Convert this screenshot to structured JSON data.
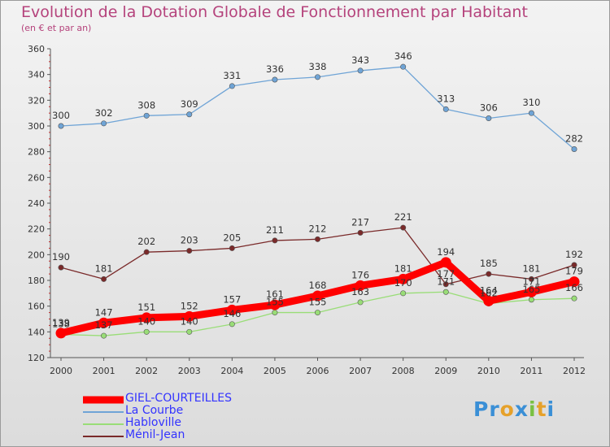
{
  "title": "Evolution de la Dotation Globale de Fonctionnement par Habitant",
  "subtitle": "(en € et par an)",
  "logo": {
    "text": "Proxiti",
    "colors": [
      "#3a8fd6",
      "#3a8fd6",
      "#e6a12a",
      "#3a8fd6",
      "#7ac143",
      "#e6a12a",
      "#3a8fd6"
    ]
  },
  "chart_data": {
    "type": "line",
    "x": [
      "2000",
      "2001",
      "2002",
      "2003",
      "2004",
      "2005",
      "2006",
      "2007",
      "2008",
      "2009",
      "2010",
      "2011",
      "2012"
    ],
    "ylim": [
      120,
      360
    ],
    "yticks": [
      "120",
      "140",
      "160",
      "180",
      "200",
      "220",
      "240",
      "260",
      "280",
      "300",
      "320",
      "340",
      "360"
    ],
    "grid": false,
    "legend_position": "bottom-left",
    "series": [
      {
        "name": "GIEL-COURTEILLES",
        "color": "#ff0000",
        "values": [
          139,
          147,
          151,
          152,
          157,
          161,
          168,
          176,
          181,
          194,
          164,
          171,
          179
        ],
        "labels": [
          "139",
          "147",
          "151",
          "152",
          "157",
          "161",
          "168",
          "176",
          "181",
          "194",
          "164",
          "171",
          "179"
        ]
      },
      {
        "name": "La Courbe",
        "color": "#6fa4d6",
        "values": [
          300,
          302,
          308,
          309,
          331,
          336,
          338,
          343,
          346,
          313,
          306,
          310,
          282
        ],
        "labels": [
          "300",
          "302",
          "308",
          "309",
          "331",
          "336",
          "338",
          "343",
          "346",
          "313",
          "306",
          "310",
          "282"
        ]
      },
      {
        "name": "Habloville",
        "color": "#99dd77",
        "values": [
          138,
          137,
          140,
          140,
          146,
          155,
          155,
          163,
          170,
          171,
          162,
          165,
          166
        ],
        "labels": [
          "138",
          "137",
          "140",
          "140",
          "146",
          "155",
          "155",
          "163",
          "170",
          "171",
          "162",
          "165",
          "166"
        ]
      },
      {
        "name": "Ménil-Jean",
        "color": "#7a2a2a",
        "values": [
          190,
          181,
          202,
          203,
          205,
          211,
          212,
          217,
          221,
          177,
          185,
          181,
          192
        ],
        "labels": [
          "190",
          "181",
          "202",
          "203",
          "205",
          "211",
          "212",
          "217",
          "221",
          "177",
          "185",
          "181",
          "192"
        ]
      }
    ]
  }
}
